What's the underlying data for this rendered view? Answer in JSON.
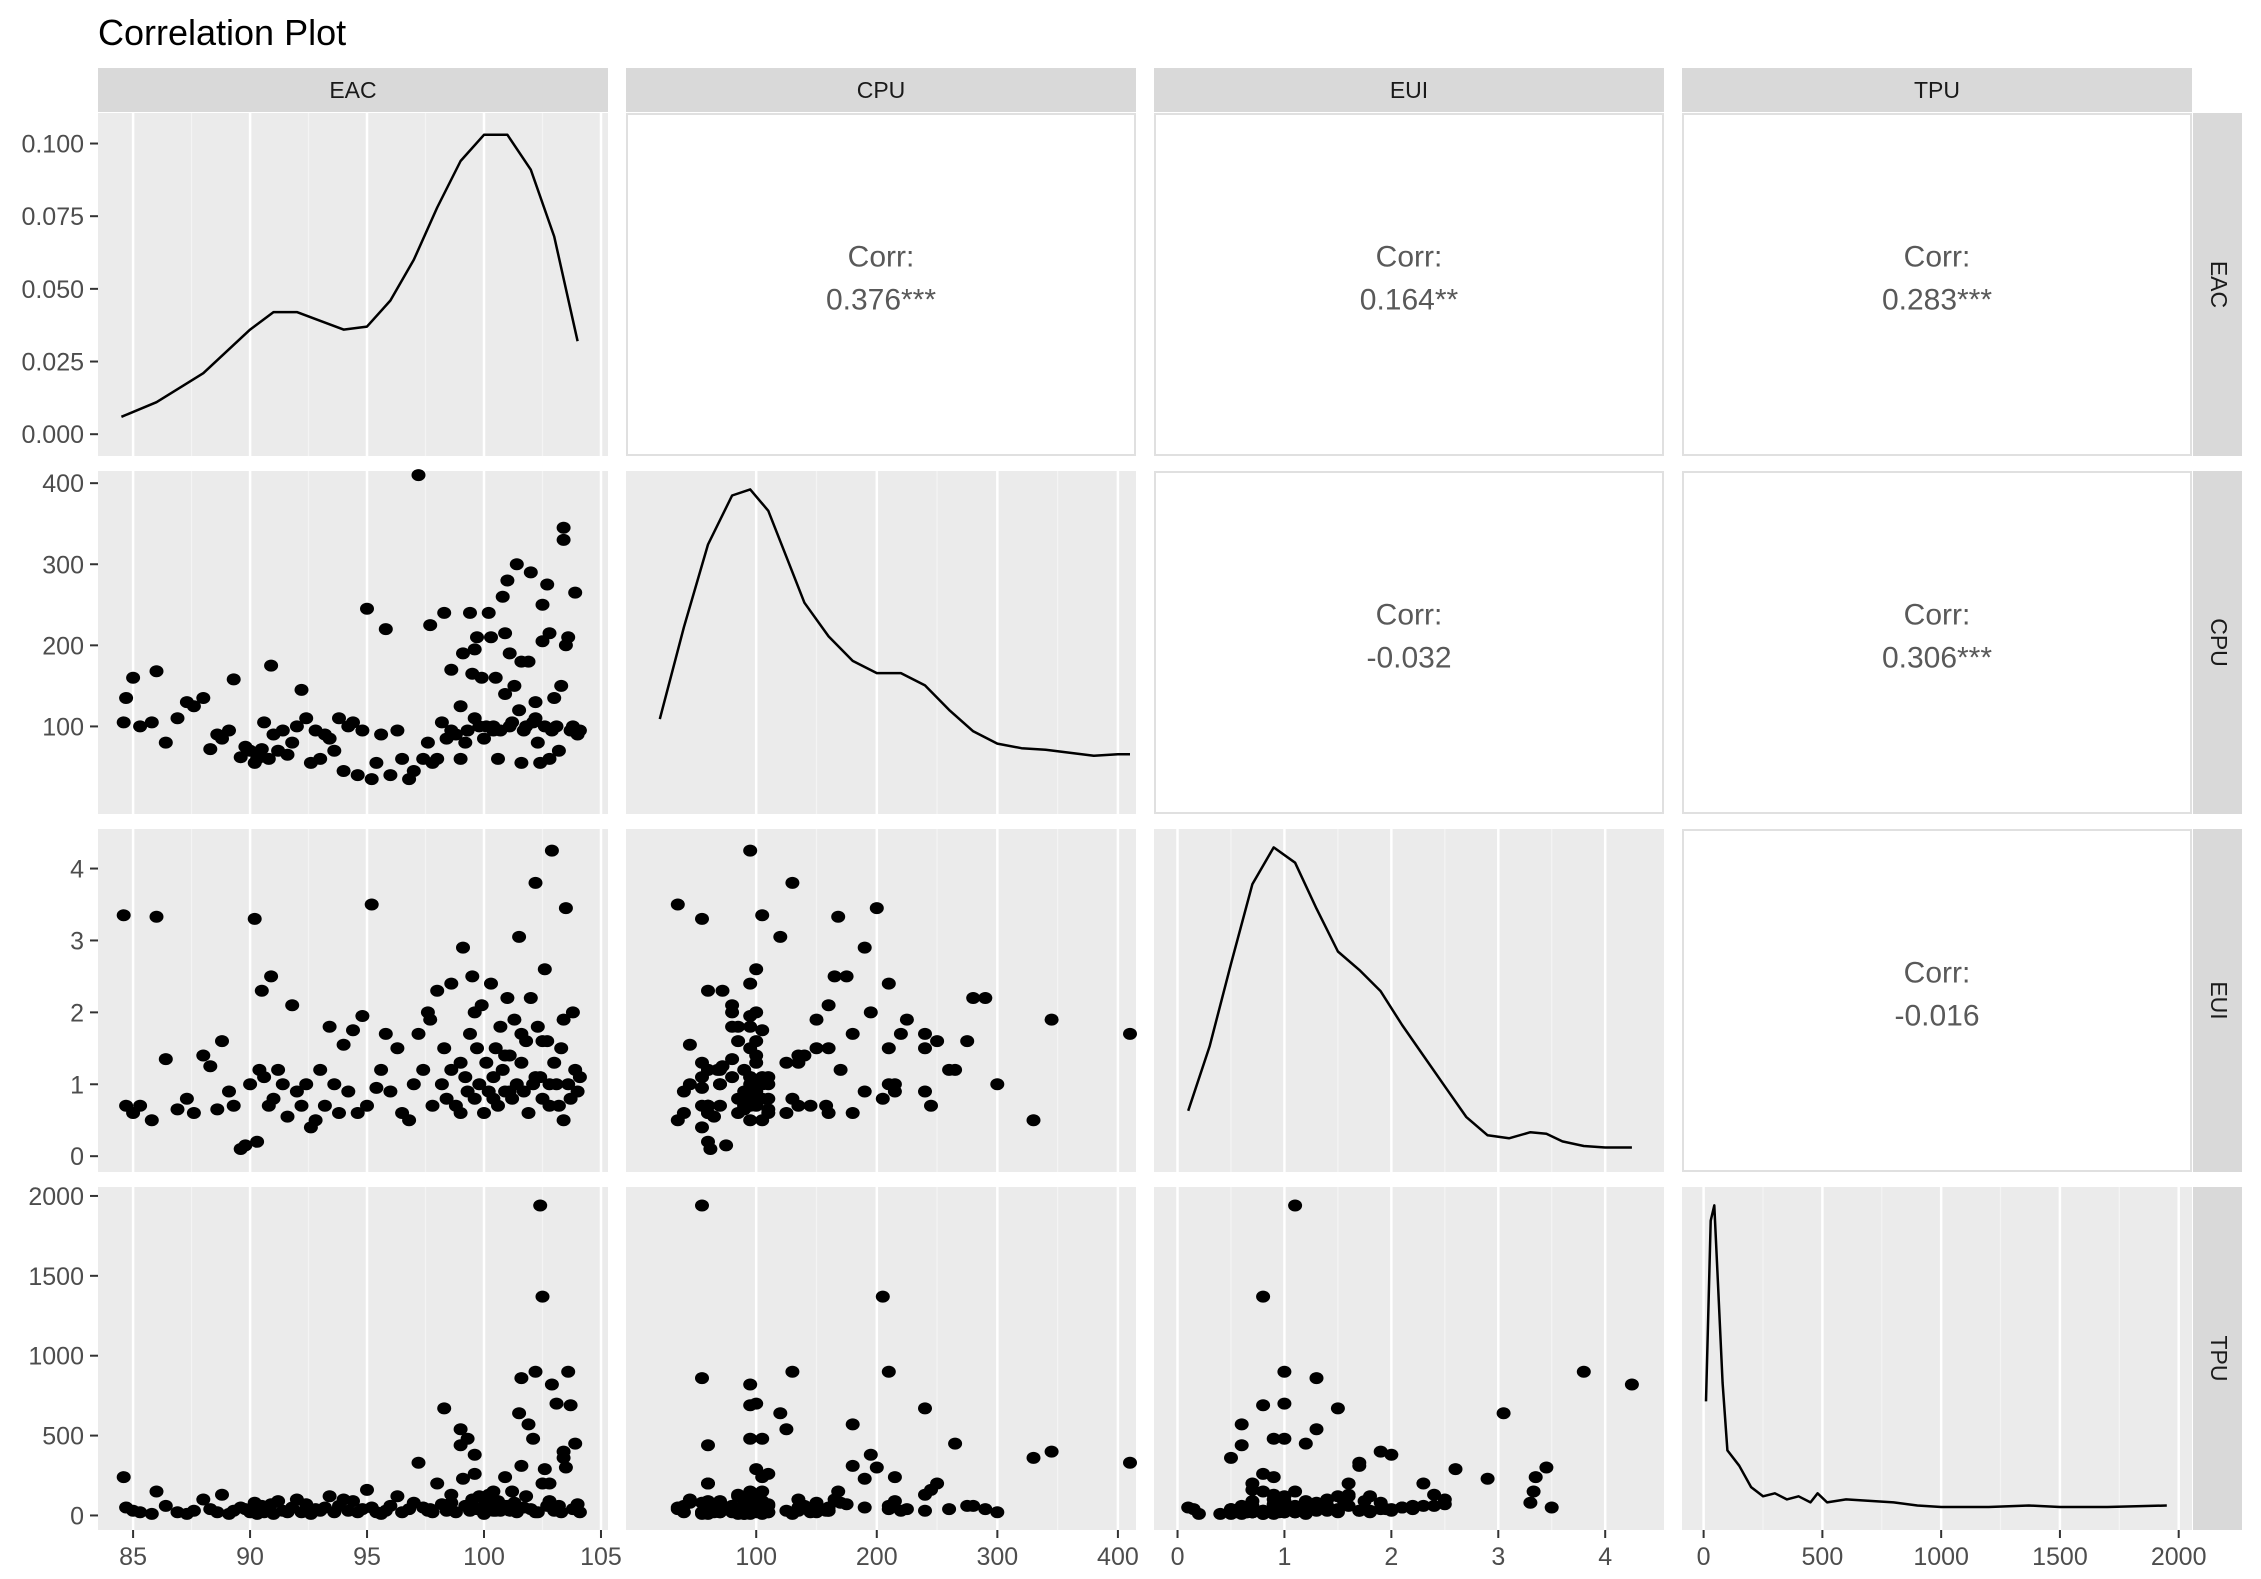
{
  "chart_data": {
    "type": "scatter",
    "title": "Correlation Plot",
    "variables": [
      "EAC",
      "CPU",
      "EUI",
      "TPU"
    ],
    "layout": "pairs matrix: density on diagonal, scatter in lower triangle, correlation text in upper triangle",
    "grid": true,
    "background": "#ebebeb",
    "strip_color": "#d9d9d9",
    "point_color": "#000000",
    "axes": {
      "EAC": {
        "range": [
          83.5,
          105.3
        ],
        "ticks": [
          85,
          90,
          95,
          100,
          105
        ]
      },
      "CPU": {
        "range": [
          -8,
          415
        ],
        "ticks": [
          100,
          200,
          300,
          400
        ],
        "x_ticks": [
          100,
          200,
          300,
          400
        ]
      },
      "EUI": {
        "range": [
          -0.22,
          4.55
        ],
        "ticks": [
          0,
          1,
          2,
          3,
          4
        ]
      },
      "TPU": {
        "range": [
          -91,
          2056
        ],
        "ticks": [
          0,
          500,
          1000,
          1500,
          2000
        ]
      }
    },
    "density_axis": {
      "range": [
        -0.0075,
        0.1105
      ],
      "ticks": [
        0.0,
        0.025,
        0.05,
        0.075,
        0.1
      ],
      "tick_labels": [
        "0.000",
        "0.025",
        "0.050",
        "0.075",
        "0.100"
      ]
    },
    "correlations": [
      {
        "row": "EAC",
        "col": "CPU",
        "label": "Corr:",
        "value": "0.376***"
      },
      {
        "row": "EAC",
        "col": "EUI",
        "label": "Corr:",
        "value": "0.164**"
      },
      {
        "row": "EAC",
        "col": "TPU",
        "label": "Corr:",
        "value": "0.283***"
      },
      {
        "row": "CPU",
        "col": "EUI",
        "label": "Corr:",
        "value": "-0.032"
      },
      {
        "row": "CPU",
        "col": "TPU",
        "label": "Corr:",
        "value": "0.306***"
      },
      {
        "row": "EUI",
        "col": "TPU",
        "label": "Corr:",
        "value": "-0.016"
      }
    ],
    "densities": {
      "EAC": [
        [
          84.5,
          0.006
        ],
        [
          86,
          0.011
        ],
        [
          88,
          0.021
        ],
        [
          90,
          0.036
        ],
        [
          91,
          0.042
        ],
        [
          92,
          0.042
        ],
        [
          93,
          0.039
        ],
        [
          94,
          0.036
        ],
        [
          95,
          0.037
        ],
        [
          96,
          0.046
        ],
        [
          97,
          0.06
        ],
        [
          98,
          0.078
        ],
        [
          99,
          0.094
        ],
        [
          100,
          0.103
        ],
        [
          101,
          0.103
        ],
        [
          102,
          0.091
        ],
        [
          103,
          0.068
        ],
        [
          104,
          0.032
        ]
      ],
      "CPU": [
        [
          20,
          0.25
        ],
        [
          40,
          0.55
        ],
        [
          60,
          0.82
        ],
        [
          80,
          0.98
        ],
        [
          95,
          1.0
        ],
        [
          110,
          0.93
        ],
        [
          125,
          0.78
        ],
        [
          140,
          0.63
        ],
        [
          160,
          0.52
        ],
        [
          180,
          0.44
        ],
        [
          200,
          0.4
        ],
        [
          220,
          0.4
        ],
        [
          240,
          0.36
        ],
        [
          260,
          0.28
        ],
        [
          280,
          0.21
        ],
        [
          300,
          0.17
        ],
        [
          320,
          0.155
        ],
        [
          340,
          0.15
        ],
        [
          360,
          0.14
        ],
        [
          380,
          0.13
        ],
        [
          400,
          0.135
        ],
        [
          410,
          0.135
        ]
      ],
      "EUI": [
        [
          0.1,
          0.14
        ],
        [
          0.3,
          0.35
        ],
        [
          0.5,
          0.62
        ],
        [
          0.7,
          0.88
        ],
        [
          0.9,
          1.0
        ],
        [
          1.1,
          0.95
        ],
        [
          1.3,
          0.8
        ],
        [
          1.5,
          0.66
        ],
        [
          1.7,
          0.6
        ],
        [
          1.9,
          0.53
        ],
        [
          2.1,
          0.42
        ],
        [
          2.3,
          0.32
        ],
        [
          2.5,
          0.22
        ],
        [
          2.7,
          0.12
        ],
        [
          2.9,
          0.06
        ],
        [
          3.1,
          0.05
        ],
        [
          3.3,
          0.07
        ],
        [
          3.45,
          0.065
        ],
        [
          3.6,
          0.04
        ],
        [
          3.8,
          0.025
        ],
        [
          4.0,
          0.02
        ],
        [
          4.25,
          0.02
        ]
      ],
      "TPU": [
        [
          10,
          0.36
        ],
        [
          30,
          0.95
        ],
        [
          45,
          1.0
        ],
        [
          60,
          0.75
        ],
        [
          80,
          0.42
        ],
        [
          100,
          0.2
        ],
        [
          150,
          0.15
        ],
        [
          200,
          0.08
        ],
        [
          250,
          0.05
        ],
        [
          300,
          0.06
        ],
        [
          350,
          0.04
        ],
        [
          400,
          0.05
        ],
        [
          450,
          0.03
        ],
        [
          480,
          0.06
        ],
        [
          520,
          0.03
        ],
        [
          600,
          0.04
        ],
        [
          700,
          0.035
        ],
        [
          800,
          0.03
        ],
        [
          900,
          0.02
        ],
        [
          1000,
          0.015
        ],
        [
          1200,
          0.015
        ],
        [
          1370,
          0.02
        ],
        [
          1500,
          0.015
        ],
        [
          1700,
          0.015
        ],
        [
          1950,
          0.02
        ]
      ]
    },
    "data": {
      "EAC": [
        84.6,
        84.7,
        85.0,
        85.3,
        85.8,
        86.0,
        86.4,
        86.9,
        87.3,
        87.6,
        88.0,
        88.3,
        88.6,
        88.8,
        89.1,
        89.3,
        89.6,
        89.8,
        90.0,
        90.2,
        90.3,
        90.4,
        90.5,
        90.6,
        90.8,
        90.9,
        91.0,
        91.2,
        91.4,
        91.6,
        91.8,
        92.0,
        92.2,
        92.4,
        92.6,
        92.8,
        93.0,
        93.2,
        93.4,
        93.6,
        93.8,
        94.0,
        94.2,
        94.4,
        94.6,
        94.8,
        95.0,
        95.2,
        95.4,
        95.6,
        95.8,
        96.0,
        96.3,
        96.5,
        96.8,
        97.0,
        97.2,
        97.4,
        97.6,
        97.8,
        98.0,
        98.2,
        98.4,
        98.6,
        98.8,
        99.0,
        99.1,
        99.2,
        99.3,
        99.4,
        99.5,
        99.6,
        99.7,
        99.8,
        99.9,
        100.0,
        100.1,
        100.2,
        100.3,
        100.4,
        100.5,
        100.6,
        100.7,
        100.8,
        100.9,
        101.0,
        101.1,
        101.2,
        101.3,
        101.4,
        101.5,
        101.6,
        101.7,
        101.8,
        101.9,
        102.0,
        102.1,
        102.2,
        102.3,
        102.4,
        102.5,
        102.6,
        102.7,
        102.8,
        102.9,
        103.0,
        103.1,
        103.2,
        103.3,
        103.4,
        103.5,
        103.6,
        103.7,
        103.8,
        103.9,
        104.0,
        104.1,
        98.3,
        99.6,
        100.4,
        101.6,
        102.8,
        97.7,
        99.0,
        100.9,
        102.2,
        103.4,
        98.6,
        101.1,
        102.5
      ],
      "CPU": [
        105,
        135,
        160,
        100,
        105,
        168,
        80,
        110,
        130,
        125,
        135,
        72,
        90,
        85,
        95,
        158,
        62,
        75,
        70,
        55,
        60,
        68,
        72,
        105,
        60,
        175,
        90,
        70,
        95,
        65,
        80,
        100,
        145,
        110,
        55,
        95,
        60,
        90,
        85,
        70,
        110,
        45,
        100,
        105,
        40,
        95,
        245,
        35,
        55,
        90,
        220,
        40,
        95,
        60,
        35,
        45,
        410,
        60,
        80,
        55,
        60,
        105,
        85,
        95,
        90,
        125,
        190,
        80,
        95,
        240,
        165,
        110,
        210,
        100,
        160,
        85,
        100,
        240,
        210,
        95,
        160,
        60,
        95,
        260,
        215,
        280,
        100,
        105,
        150,
        300,
        120,
        55,
        95,
        100,
        180,
        290,
        105,
        130,
        80,
        55,
        205,
        100,
        275,
        60,
        95,
        135,
        100,
        70,
        150,
        345,
        200,
        210,
        95,
        100,
        265,
        90,
        95,
        240,
        195,
        100,
        180,
        215,
        225,
        60,
        140,
        110,
        330,
        170,
        190,
        250,
        95
      ],
      "EUI": [
        3.35,
        0.7,
        0.6,
        0.7,
        0.5,
        3.33,
        1.35,
        0.65,
        0.8,
        0.6,
        1.4,
        1.25,
        0.65,
        1.6,
        0.9,
        0.7,
        0.1,
        0.15,
        1.0,
        3.3,
        0.2,
        1.2,
        2.3,
        1.1,
        0.7,
        2.5,
        0.8,
        1.2,
        1.0,
        0.55,
        2.1,
        0.9,
        0.7,
        1.0,
        0.4,
        0.5,
        1.2,
        0.7,
        1.8,
        1.0,
        0.6,
        1.55,
        0.9,
        1.75,
        0.6,
        1.95,
        0.7,
        3.5,
        0.95,
        1.2,
        1.7,
        0.9,
        1.5,
        0.6,
        0.5,
        1.0,
        1.7,
        1.2,
        2.0,
        0.7,
        2.3,
        1.0,
        0.8,
        2.4,
        0.7,
        1.3,
        2.9,
        1.1,
        0.9,
        1.7,
        2.5,
        0.8,
        1.5,
        1.0,
        2.1,
        0.6,
        1.3,
        0.9,
        2.4,
        1.1,
        1.5,
        0.7,
        1.8,
        1.2,
        0.9,
        2.2,
        1.4,
        0.8,
        1.9,
        1.0,
        3.05,
        1.3,
        0.9,
        1.6,
        0.6,
        2.2,
        1.0,
        3.8,
        1.8,
        1.1,
        0.8,
        2.6,
        1.6,
        0.7,
        4.25,
        1.3,
        1.0,
        0.7,
        1.5,
        1.9,
        3.45,
        1.0,
        0.8,
        2.0,
        1.2,
        0.9,
        1.1,
        1.5,
        2.0,
        0.8,
        1.7,
        1.0,
        1.9,
        0.6,
        1.4,
        1.1,
        0.5,
        1.2,
        0.9,
        1.6,
        0.7
      ],
      "TPU": [
        240,
        50,
        30,
        20,
        10,
        150,
        60,
        20,
        10,
        30,
        100,
        40,
        20,
        130,
        10,
        30,
        50,
        40,
        20,
        80,
        10,
        30,
        60,
        20,
        40,
        70,
        10,
        90,
        30,
        20,
        50,
        100,
        20,
        70,
        10,
        40,
        30,
        50,
        120,
        20,
        60,
        100,
        30,
        90,
        20,
        40,
        160,
        50,
        20,
        10,
        30,
        60,
        120,
        20,
        40,
        80,
        330,
        50,
        30,
        20,
        200,
        70,
        30,
        130,
        20,
        540,
        230,
        60,
        480,
        30,
        100,
        260,
        40,
        120,
        50,
        10,
        80,
        130,
        60,
        150,
        30,
        90,
        30,
        40,
        240,
        60,
        30,
        150,
        80,
        20,
        640,
        860,
        50,
        120,
        570,
        40,
        480,
        900,
        20,
        1940,
        1370,
        290,
        60,
        200,
        820,
        30,
        700,
        60,
        20,
        400,
        300,
        900,
        690,
        40,
        450,
        70,
        20,
        670,
        380,
        30,
        310,
        90,
        40,
        440,
        60,
        20,
        360,
        80,
        50,
        200,
        20
      ]
    }
  }
}
